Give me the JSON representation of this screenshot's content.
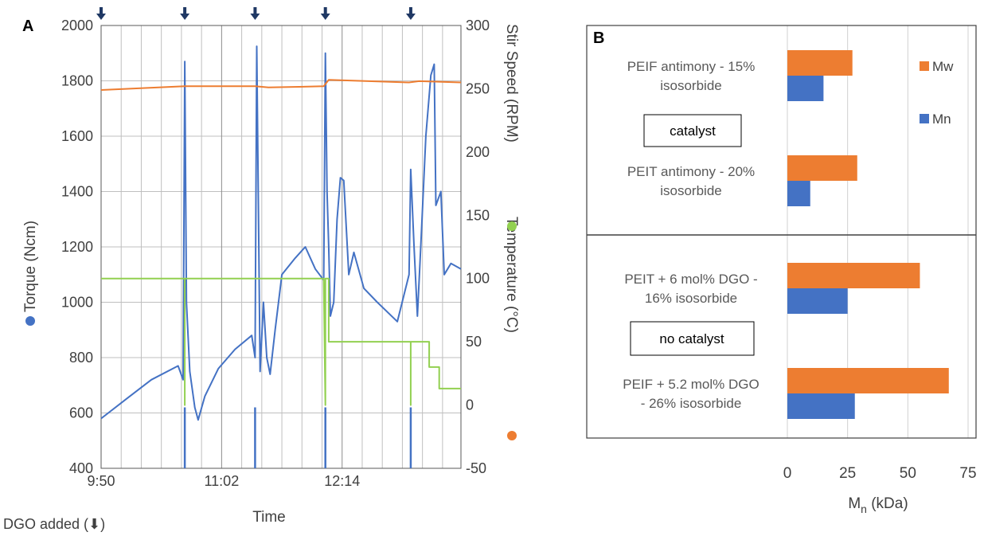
{
  "panel_a": {
    "label": "A",
    "x_ticks": [
      "9:50",
      "11:02",
      "12:14"
    ],
    "xlabel": "Time",
    "left_axis_label": "Torque (Ncm)",
    "right_axis_label_1": "Temperature (°C)",
    "right_axis_label_2": "Stir Speed (RPM)",
    "left_ticks": [
      "400",
      "600",
      "800",
      "1000",
      "1200",
      "1400",
      "1600",
      "1800",
      "2000"
    ],
    "right_ticks": [
      "-50",
      "0",
      "50",
      "100",
      "150",
      "200",
      "250",
      "300"
    ],
    "footnote": "DGO added (⬇)"
  },
  "panel_b": {
    "label": "B",
    "legend": [
      "Mw",
      "Mn"
    ],
    "group_labels": [
      "catalyst",
      "no catalyst"
    ],
    "categories": [
      [
        "PEIF antimony - 15%",
        "isosorbide"
      ],
      [
        "PEIT antimony - 20%",
        "isosorbide"
      ],
      [
        "PEIT + 6 mol% DGO -",
        "16% isosorbide"
      ],
      [
        "PEIF + 5.2 mol% DGO",
        "- 26% isosorbide"
      ]
    ],
    "x_ticks": [
      "0",
      "25",
      "50",
      "75"
    ],
    "xlabel": "M",
    "xlabel_sub": "n",
    "xlabel_unit": " (kDa)"
  },
  "colors": {
    "torque": "#4472C4",
    "temperature": "#ED7D31",
    "stir": "#92D050",
    "arrow": "#1F3864",
    "grid": "#bfbfbf",
    "mw": "#ED7D31",
    "mn": "#4472C4"
  },
  "chart_data": [
    {
      "type": "line",
      "x_unit": "time (h:mm)",
      "xlim": [
        "9:50",
        "13:25"
      ],
      "ylim_left": [
        400,
        2000
      ],
      "ylim_right": [
        -50,
        300
      ],
      "dgo_added_times": [
        "9:50",
        "10:40",
        "11:22",
        "12:04",
        "12:55"
      ],
      "series": [
        {
          "name": "Torque (Ncm)",
          "axis": "left",
          "points": [
            [
              "9:50",
              580
            ],
            [
              "10:05",
              650
            ],
            [
              "10:20",
              720
            ],
            [
              "10:36",
              770
            ],
            [
              "10:39",
              720
            ],
            [
              "10:40",
              1870
            ],
            [
              "10:41",
              1000
            ],
            [
              "10:43",
              750
            ],
            [
              "10:46",
              620
            ],
            [
              "10:48",
              575
            ],
            [
              "10:52",
              660
            ],
            [
              "11:00",
              760
            ],
            [
              "11:10",
              830
            ],
            [
              "11:20",
              880
            ],
            [
              "11:22",
              800
            ],
            [
              "11:23",
              1925
            ],
            [
              "11:25",
              750
            ],
            [
              "11:27",
              1000
            ],
            [
              "11:29",
              800
            ],
            [
              "11:31",
              740
            ],
            [
              "11:34",
              900
            ],
            [
              "11:38",
              1100
            ],
            [
              "11:46",
              1160
            ],
            [
              "11:52",
              1200
            ],
            [
              "11:58",
              1120
            ],
            [
              "12:03",
              1080
            ],
            [
              "12:04",
              1900
            ],
            [
              "12:05",
              1400
            ],
            [
              "12:06",
              1200
            ],
            [
              "12:07",
              950
            ],
            [
              "12:09",
              1000
            ],
            [
              "12:11",
              1300
            ],
            [
              "12:13",
              1450
            ],
            [
              "12:15",
              1440
            ],
            [
              "12:18",
              1100
            ],
            [
              "12:21",
              1180
            ],
            [
              "12:27",
              1050
            ],
            [
              "12:35",
              1000
            ],
            [
              "12:47",
              930
            ],
            [
              "12:54",
              1100
            ],
            [
              "12:55",
              1480
            ],
            [
              "12:57",
              1200
            ],
            [
              "12:59",
              950
            ],
            [
              "13:01",
              1200
            ],
            [
              "13:04",
              1600
            ],
            [
              "13:07",
              1820
            ],
            [
              "13:09",
              1860
            ],
            [
              "13:10",
              1350
            ],
            [
              "13:13",
              1400
            ],
            [
              "13:15",
              1100
            ],
            [
              "13:19",
              1140
            ],
            [
              "13:25",
              1120
            ]
          ]
        },
        {
          "name": "Temperature (°C)",
          "axis": "right",
          "points": [
            [
              "9:50",
              249
            ],
            [
              "10:40",
              252
            ],
            [
              "11:22",
              252
            ],
            [
              "11:30",
              251
            ],
            [
              "12:03",
              252
            ],
            [
              "12:06",
              257
            ],
            [
              "12:54",
              255
            ],
            [
              "13:00",
              256
            ],
            [
              "13:25",
              255
            ]
          ]
        },
        {
          "name": "Stir Speed (RPM)",
          "axis": "right",
          "points": [
            [
              "9:50",
              100
            ],
            [
              "10:40",
              100
            ],
            [
              "10:40",
              0
            ],
            [
              "10:40",
              100
            ],
            [
              "12:03",
              100
            ],
            [
              "12:04",
              0
            ],
            [
              "12:04",
              100
            ],
            [
              "12:06",
              100
            ],
            [
              "12:06",
              50
            ],
            [
              "12:55",
              50
            ],
            [
              "12:55",
              0
            ],
            [
              "12:55",
              50
            ],
            [
              "13:06",
              50
            ],
            [
              "13:06",
              30
            ],
            [
              "13:12",
              30
            ],
            [
              "13:12",
              13
            ],
            [
              "13:25",
              13
            ]
          ]
        }
      ]
    },
    {
      "type": "bar",
      "orientation": "horizontal",
      "categories": [
        "PEIF antimony - 15% isosorbide",
        "PEIT antimony - 20% isosorbide",
        "PEIT + 6 mol% DGO - 16% isosorbide",
        "PEIF + 5.2 mol% DGO - 26% isosorbide"
      ],
      "groups": [
        {
          "name": "catalyst",
          "categories": [
            0,
            1
          ]
        },
        {
          "name": "no catalyst",
          "categories": [
            2,
            3
          ]
        }
      ],
      "series": [
        {
          "name": "Mw",
          "values": [
            27,
            29,
            55,
            67
          ]
        },
        {
          "name": "Mn",
          "values": [
            15,
            9.5,
            25,
            28
          ]
        }
      ],
      "xlabel": "Mn (kDa)",
      "xlim": [
        0,
        75
      ]
    }
  ]
}
